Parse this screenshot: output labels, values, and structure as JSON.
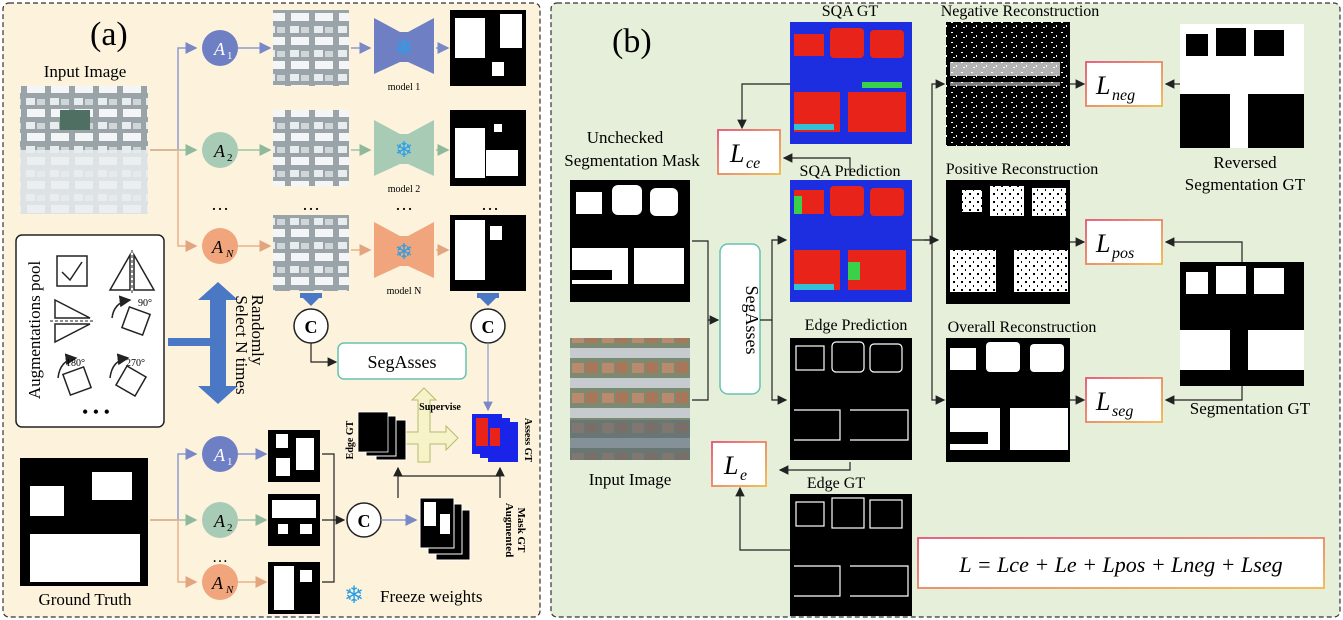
{
  "panel_a": {
    "label": "(a)",
    "input_image": "Input Image",
    "ground_truth": "Ground Truth",
    "augmentations_pool": "Augmentations pool",
    "rot90": "90°",
    "rot180": "180°",
    "rot270": "270°",
    "ellipsis": "• • •",
    "select_randomly": "Randomly",
    "select_n_times": "Select N times",
    "aug_1": "A",
    "aug_1_sub": "1",
    "aug_2": "A",
    "aug_2_sub": "2",
    "aug_n": "A",
    "aug_n_sub": "N",
    "model_1": "model 1",
    "model_2": "model 2",
    "model_n": "model N",
    "dots": "…",
    "concat": "C",
    "segasses": "SegAsses",
    "supervise": "Supervise",
    "edge_gt": "Edge GT",
    "assess_gt": "Assess GT",
    "augmented_mask_gt_1": "Augmented",
    "augmented_mask_gt_2": "Mask GT",
    "freeze_weights": "Freeze weights"
  },
  "panel_b": {
    "label": "(b)",
    "sqa_gt": "SQA GT",
    "sqa_prediction": "SQA Prediction",
    "edge_prediction": "Edge Prediction",
    "edge_gt": "Edge GT",
    "unchecked_1": "Unchecked",
    "unchecked_2": "Segmentation Mask",
    "input_image": "Input Image",
    "segasses": "SegAsses",
    "negative_reconstruction": "Negative Reconstruction",
    "positive_reconstruction": "Positive Reconstruction",
    "overall_reconstruction": "Overall Reconstruction",
    "reversed_1": "Reversed",
    "reversed_2": "Segmentation GT",
    "segmentation_gt": "Segmentation GT",
    "loss_ce": "L",
    "loss_ce_sub": "ce",
    "loss_e": "L",
    "loss_e_sub": "e",
    "loss_neg": "L",
    "loss_neg_sub": "neg",
    "loss_pos": "L",
    "loss_pos_sub": "pos",
    "loss_seg": "L",
    "loss_seg_sub": "seg",
    "total_loss": "L = Lce + Le + Lpos + Lneg + Lseg"
  },
  "colors": {
    "panel_a_bg": "#fdf3dc",
    "panel_b_bg": "#e6efd9",
    "aug_1": "#6f7fc4",
    "aug_2": "#a8cbb6",
    "aug_n": "#f0a57c",
    "arrow_blue": "#8d9ad0",
    "arrow_green": "#9cc3a6",
    "arrow_orange": "#e9b18d",
    "select_arrow": "#4a78c4",
    "segasses_border": "#66c3b0"
  }
}
